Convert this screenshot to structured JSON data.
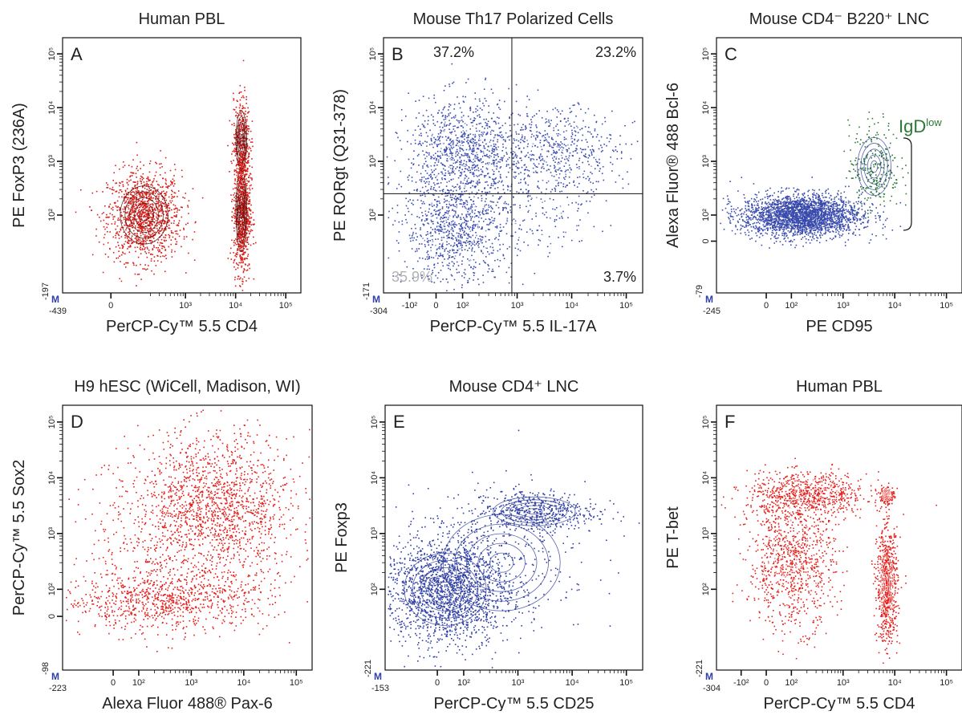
{
  "chart_data": [
    {
      "id": "A",
      "type": "scatter",
      "title": "Human PBL",
      "panel": "A",
      "xlabel": "PerCP-Cy™ 5.5   CD4",
      "ylabel": "PE  FoxP3 (236A)",
      "xscale": "biexponential",
      "yscale": "biexponential",
      "xmin_label": "-439",
      "ymin_label": "-197",
      "xticks": [
        "0",
        "10³",
        "10⁴",
        "10⁵"
      ],
      "yticks": [
        "10²",
        "10³",
        "10⁴",
        "10⁵"
      ],
      "color": "#d9211c",
      "populations": [
        {
          "x": 150,
          "y": 100,
          "spread_x": 0.22,
          "spread_y": 0.25,
          "weight": 0.5
        },
        {
          "x": 13000,
          "y": 120,
          "spread_x": 0.05,
          "spread_y": 0.35,
          "weight": 0.35
        },
        {
          "x": 13000,
          "y": 2500,
          "spread_x": 0.05,
          "spread_y": 0.25,
          "weight": 0.15
        }
      ],
      "badge": "M"
    },
    {
      "id": "B",
      "type": "scatter",
      "title": "Mouse Th17 Polarized Cells",
      "panel": "B",
      "xlabel": "PerCP-Cy™ 5.5   IL-17A",
      "ylabel": "PE  RORgt (Q31-378)",
      "xscale": "biexponential",
      "yscale": "biexponential",
      "xmin_label": "-304",
      "ymin_label": "-171",
      "xticks": [
        "-10²",
        "0",
        "10²",
        "10³",
        "10⁴",
        "10⁵"
      ],
      "yticks": [
        "10²",
        "10³",
        "10⁴",
        "10⁵"
      ],
      "color": "#3b4db0",
      "quadrants": {
        "x": 800,
        "y": 250
      },
      "quadrant_labels": {
        "ul": "37.2%",
        "ur": "23.2%",
        "lr": "3.7%",
        "ll": "35.9%"
      },
      "populations": [
        {
          "x": 100,
          "y": 1500,
          "spread_x": 0.3,
          "spread_y": 0.3,
          "weight": 0.37
        },
        {
          "x": 5000,
          "y": 1500,
          "spread_x": 0.35,
          "spread_y": 0.25,
          "weight": 0.23
        },
        {
          "x": 80,
          "y": 50,
          "spread_x": 0.3,
          "spread_y": 0.3,
          "weight": 0.36
        },
        {
          "x": 3000,
          "y": 80,
          "spread_x": 0.3,
          "spread_y": 0.2,
          "weight": 0.04
        }
      ],
      "badge": "M"
    },
    {
      "id": "C",
      "type": "scatter",
      "title": "Mouse CD4⁻ B220⁺ LNC",
      "panel": "C",
      "xlabel": "PE   CD95",
      "ylabel": "Alexa Fluor® 488  Bcl-6",
      "xscale": "biexponential",
      "yscale": "biexponential",
      "xmin_label": "-245",
      "ymin_label": "-79",
      "xticks": [
        "0",
        "10²",
        "10³",
        "10⁴",
        "10⁵"
      ],
      "yticks": [
        "0",
        "10²",
        "10³",
        "10⁴",
        "10⁵"
      ],
      "color": "#3b4db0",
      "highlight_color": "#2a7a34",
      "annotation": "IgD",
      "annotation_sup": "low",
      "populations": [
        {
          "x": 150,
          "y": 100,
          "spread_x": 0.35,
          "spread_y": 0.12,
          "weight": 0.9
        },
        {
          "x": 4000,
          "y": 800,
          "spread_x": 0.15,
          "spread_y": 0.25,
          "weight": 0.1
        }
      ],
      "badge": "M"
    },
    {
      "id": "D",
      "type": "scatter",
      "title": "H9 hESC (WiCell, Madison, WI)",
      "panel": "D",
      "xlabel": "Alexa Fluor 488® Pax-6",
      "ylabel": "PerCP-Cy™ 5.5  Sox2",
      "xscale": "biexponential",
      "yscale": "biexponential",
      "xmin_label": "-223",
      "ymin_label": "-98",
      "xticks": [
        "0",
        "10²",
        "10³",
        "10⁴",
        "10⁵"
      ],
      "yticks": [
        "0",
        "10²",
        "10³",
        "10⁴",
        "10⁵"
      ],
      "color": "#e4201c",
      "populations": [
        {
          "x": 3000,
          "y": 3000,
          "spread_x": 0.45,
          "spread_y": 0.4,
          "weight": 0.55
        },
        {
          "x": 300,
          "y": 60,
          "spread_x": 0.6,
          "spread_y": 0.15,
          "weight": 0.3
        },
        {
          "x": 300,
          "y": 600,
          "spread_x": 0.6,
          "spread_y": 0.5,
          "weight": 0.15
        }
      ],
      "badge": "M"
    },
    {
      "id": "E",
      "type": "scatter",
      "title": "Mouse CD4⁺ LNC",
      "panel": "E",
      "xlabel": "PerCP-Cy™ 5.5   CD25",
      "ylabel": "PE   Foxp3",
      "xscale": "biexponential",
      "yscale": "biexponential",
      "xmin_label": "-153",
      "ymin_label": "-221",
      "xticks": [
        "0",
        "10²",
        "10³",
        "10⁴",
        "10⁵"
      ],
      "yticks": [
        "10²",
        "10³",
        "10⁴",
        "10⁵"
      ],
      "color": "#2f3fa6",
      "populations": [
        {
          "x": 30,
          "y": 100,
          "spread_x": 0.35,
          "spread_y": 0.3,
          "weight": 0.7
        },
        {
          "x": 2000,
          "y": 2500,
          "spread_x": 0.35,
          "spread_y": 0.12,
          "weight": 0.2
        },
        {
          "x": 500,
          "y": 300,
          "spread_x": 0.5,
          "spread_y": 0.4,
          "weight": 0.1
        }
      ],
      "badge": "M"
    },
    {
      "id": "F",
      "type": "scatter",
      "title": "Human PBL",
      "panel": "F",
      "xlabel": "PerCP-Cy™ 5.5   CD4",
      "ylabel": "PE   T-bet",
      "xscale": "biexponential",
      "yscale": "biexponential",
      "xmin_label": "-304",
      "ymin_label": "-221",
      "xticks": [
        "-10²",
        "0",
        "10²",
        "10³",
        "10⁴",
        "10⁵"
      ],
      "yticks": [
        "10²",
        "10³",
        "10⁴",
        "10⁵"
      ],
      "color": "#e4201c",
      "populations": [
        {
          "x": 200,
          "y": 5000,
          "spread_x": 0.35,
          "spread_y": 0.12,
          "weight": 0.3
        },
        {
          "x": 100,
          "y": 300,
          "spread_x": 0.25,
          "spread_y": 0.35,
          "weight": 0.35
        },
        {
          "x": 7000,
          "y": 120,
          "spread_x": 0.06,
          "spread_y": 0.3,
          "weight": 0.3
        },
        {
          "x": 7000,
          "y": 5000,
          "spread_x": 0.04,
          "spread_y": 0.05,
          "weight": 0.05
        }
      ],
      "badge": "M"
    }
  ]
}
